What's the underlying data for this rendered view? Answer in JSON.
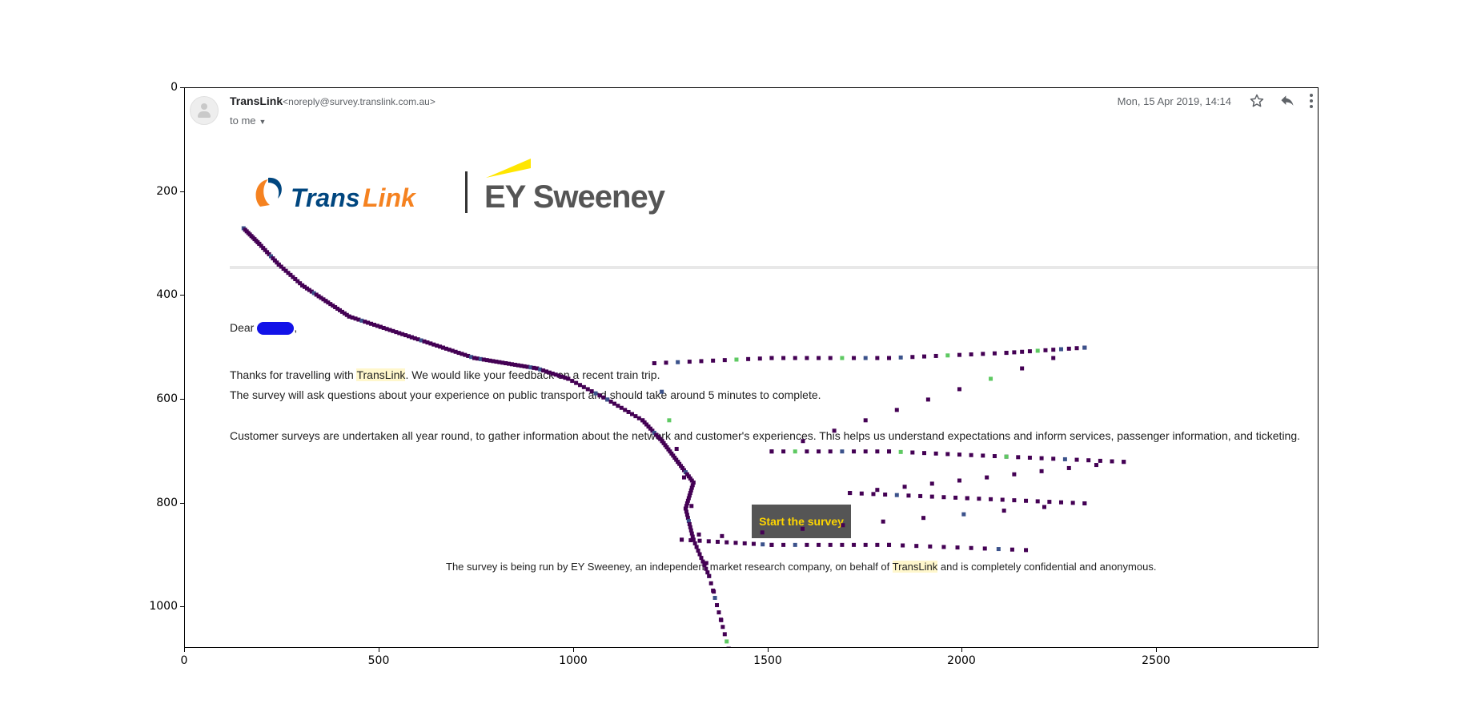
{
  "chart_data": {
    "type": "heatmap",
    "xlim": [
      0,
      2900
    ],
    "ylim": [
      1080,
      0
    ],
    "xticks": [
      "0",
      "500",
      "1000",
      "1500",
      "2000",
      "2500"
    ],
    "yticks": [
      "0",
      "200",
      "400",
      "600",
      "800",
      "1000"
    ],
    "grid": false,
    "colormap": [
      "#440154",
      "#3b528b",
      "#21918c",
      "#5ec962",
      "#fde725"
    ],
    "trail_points": [
      [
        150,
        270
      ],
      [
        190,
        300
      ],
      [
        240,
        340
      ],
      [
        300,
        380
      ],
      [
        360,
        410
      ],
      [
        420,
        440
      ],
      [
        500,
        460
      ],
      [
        580,
        480
      ],
      [
        660,
        500
      ],
      [
        740,
        520
      ],
      [
        820,
        530
      ],
      [
        900,
        540
      ],
      [
        980,
        560
      ],
      [
        1080,
        600
      ],
      [
        1170,
        640
      ],
      [
        1220,
        680
      ],
      [
        1260,
        720
      ],
      [
        1300,
        760
      ],
      [
        1280,
        810
      ],
      [
        1300,
        870
      ],
      [
        1340,
        940
      ],
      [
        1390,
        1080
      ],
      [
        1200,
        530
      ],
      [
        1500,
        520
      ],
      [
        1800,
        520
      ],
      [
        2100,
        510
      ],
      [
        2300,
        500
      ],
      [
        1500,
        700
      ],
      [
        1800,
        700
      ],
      [
        2100,
        710
      ],
      [
        2400,
        720
      ],
      [
        1700,
        780
      ],
      [
        2000,
        790
      ],
      [
        2300,
        800
      ],
      [
        1270,
        870
      ],
      [
        1500,
        880
      ],
      [
        1800,
        880
      ],
      [
        2150,
        890
      ]
    ]
  },
  "email": {
    "sender_name": "TransLink",
    "sender_email": "<noreply@survey.translink.com.au>",
    "recipient_label": "to me",
    "date": "Mon, 15 Apr 2019, 14:14",
    "icons": {
      "star": "star-icon",
      "reply": "reply-icon",
      "more": "more-vert-icon"
    },
    "logo_left_text": "TransLink",
    "logo_right_text": "EY Sweeney",
    "greeting": "Dear",
    "greeting_suffix": ",",
    "para1_prefix": "Thanks for travelling with ",
    "para1_highlight": "TransLink",
    "para1_suffix": ". We would like your feedback on a recent train trip.",
    "para2": "The survey will ask questions about your experience on public transport and should take around 5 minutes to complete.",
    "para3": "Customer surveys are undertaken all year round, to gather information about the network and customer's experiences. This helps us understand expectations and inform services, passenger information, and ticketing.",
    "button_label": "Start the survey",
    "footer_prefix": "The survey is being run by EY Sweeney, an independent market research company, on behalf of ",
    "footer_highlight": "TransLink",
    "footer_suffix": " and is completely confidential and anonymous.",
    "colors": {
      "button_bg": "#555555",
      "button_text": "#ffd600",
      "highlight": "#fff7cc",
      "redaction": "#1212e8",
      "translink_orange": "#f58220",
      "translink_blue": "#00467f"
    }
  }
}
